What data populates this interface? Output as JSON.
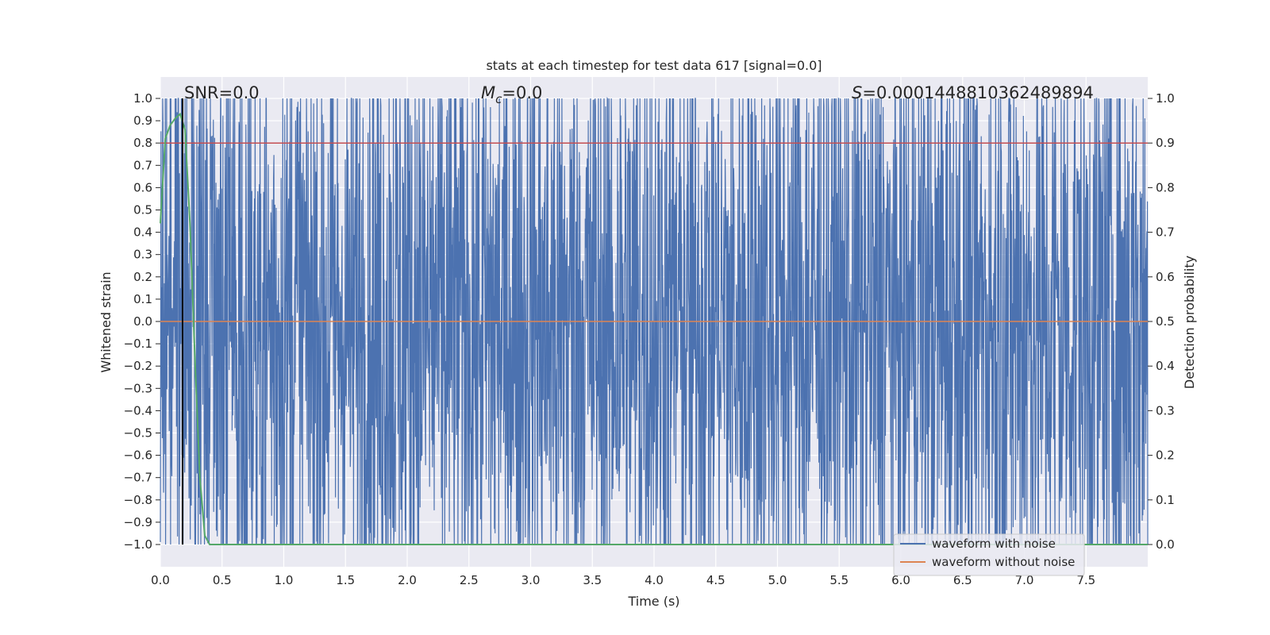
{
  "chart_data": {
    "type": "line",
    "title": "stats at each timestep for test data 617 [signal=0.0]",
    "xlabel": "Time (s)",
    "ylabel": "Whitened strain",
    "y2label": "Detection probability",
    "xlim": [
      0.0,
      8.0
    ],
    "ylim": [
      -1.0,
      1.0
    ],
    "y2lim": [
      0.0,
      1.0
    ],
    "xticks": [
      "0.0",
      "0.5",
      "1.0",
      "1.5",
      "2.0",
      "2.5",
      "3.0",
      "3.5",
      "4.0",
      "4.5",
      "5.0",
      "5.5",
      "6.0",
      "6.5",
      "7.0",
      "7.5"
    ],
    "yticks": [
      "1.0",
      "0.9",
      "0.8",
      "0.7",
      "0.6",
      "0.5",
      "0.4",
      "0.3",
      "0.2",
      "0.1",
      "0.0",
      "−0.1",
      "−0.2",
      "−0.3",
      "−0.4",
      "−0.5",
      "−0.6",
      "−0.7",
      "−0.8",
      "−0.9",
      "−1.0"
    ],
    "y2ticks": [
      "1.0",
      "0.9",
      "0.8",
      "0.7",
      "0.6",
      "0.5",
      "0.4",
      "0.3",
      "0.2",
      "0.1",
      "0.0"
    ],
    "annotations": {
      "snr": "SNR=0.0",
      "mc_symbol": "M",
      "mc_sub": "c",
      "mc_value": "=0.0",
      "s_symbol": "S",
      "s_value": "=0.0001448810362489894"
    },
    "legend": {
      "placement": "lower-right",
      "entries": [
        "waveform with noise",
        "waveform without noise"
      ]
    },
    "threshold": {
      "axis": "right",
      "value": 0.9
    },
    "marker_line": {
      "x": 0.18
    },
    "series": [
      {
        "name": "waveform with noise",
        "axis": "left",
        "kind": "noise",
        "range": [
          -1.0,
          1.0
        ],
        "duration": 8.0
      },
      {
        "name": "waveform without noise",
        "axis": "left",
        "values_x": [
          0.0,
          8.0
        ],
        "values_y": [
          0.0,
          0.0
        ]
      },
      {
        "name": "detection probability",
        "axis": "right",
        "x": [
          0.0,
          0.04,
          0.08,
          0.12,
          0.16,
          0.2,
          0.24,
          0.28,
          0.32,
          0.36,
          0.4,
          8.0
        ],
        "y": [
          0.72,
          0.91,
          0.94,
          0.955,
          0.965,
          0.93,
          0.72,
          0.42,
          0.15,
          0.02,
          0.0,
          0.0
        ]
      }
    ],
    "colors": {
      "plot_bg": "#eaeaf2",
      "grid": "#ffffff",
      "noise": "#4c72b0",
      "clean": "#dd8452",
      "prob": "#55a868",
      "threshold": "#c44e52",
      "marker": "#000000",
      "text": "#262626"
    }
  }
}
